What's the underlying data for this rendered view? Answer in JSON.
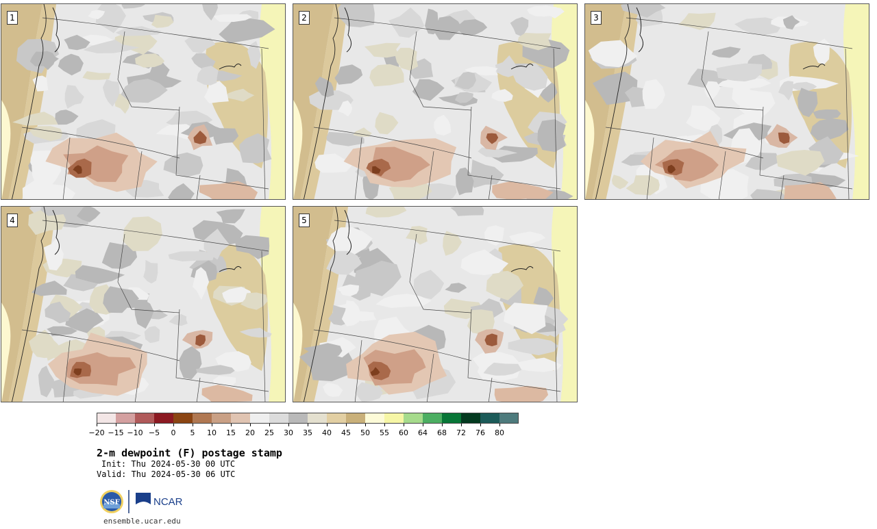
{
  "panels": [
    {
      "label": "1"
    },
    {
      "label": "2"
    },
    {
      "label": "3"
    },
    {
      "label": "4"
    },
    {
      "label": "5"
    }
  ],
  "colorbar": {
    "colors": [
      "#f3e6e6",
      "#d4a0a0",
      "#b05a5a",
      "#8c1a22",
      "#8b4513",
      "#b07852",
      "#c9a085",
      "#e0c4b2",
      "#efefef",
      "#dcdcdc",
      "#b9b9b9",
      "#e4e0cf",
      "#e2cfa3",
      "#c9b07a",
      "#fdfbd8",
      "#f6f6a6",
      "#a6db8c",
      "#4cae62",
      "#087637",
      "#043a20",
      "#1c5b59",
      "#4e7b7d"
    ],
    "tick_labels": [
      "−20",
      "−15",
      "−10",
      "−5",
      "0",
      "5",
      "10",
      "15",
      "20",
      "25",
      "30",
      "35",
      "40",
      "45",
      "50",
      "55",
      "60",
      "64",
      "68",
      "72",
      "76",
      "80"
    ]
  },
  "title": "2-m dewpoint (F) postage stamp",
  "init": "Init: Thu 2024-05-30 00 UTC",
  "valid": "Valid: Thu 2024-05-30 06 UTC",
  "logos": {
    "nsf": "NSF",
    "ncar": "NCAR"
  },
  "url": "ensemble.ucar.edu"
}
